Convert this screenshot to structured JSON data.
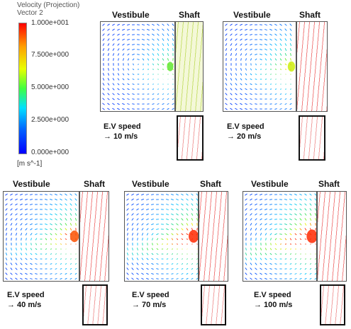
{
  "legend": {
    "title_line1": "Velocity (Projection)",
    "title_line2": "Vector 2",
    "ticks": [
      "1.000e+001",
      "7.500e+000",
      "5.000e+000",
      "2.500e+000",
      "0.000e+000"
    ],
    "unit": "[m s^-1]"
  },
  "labels": {
    "vestibule": "Vestibule",
    "shaft": "Shaft"
  },
  "panels": [
    {
      "speed_line1": "E.V speed",
      "speed_line2": "→ 10 m/s"
    },
    {
      "speed_line1": "E.V speed",
      "speed_line2": "→ 20 m/s"
    },
    {
      "speed_line1": "E.V speed",
      "speed_line2": "→ 40 m/s"
    },
    {
      "speed_line1": "E.V speed",
      "speed_line2": "→ 70 m/s"
    },
    {
      "speed_line1": "E.V speed",
      "speed_line2": "→ 100 m/s"
    }
  ],
  "colors": {
    "low": "#1a1aff",
    "mid": "#40e040",
    "high": "#ff1010",
    "shaft_tint_10": "#e8f0a0"
  }
}
